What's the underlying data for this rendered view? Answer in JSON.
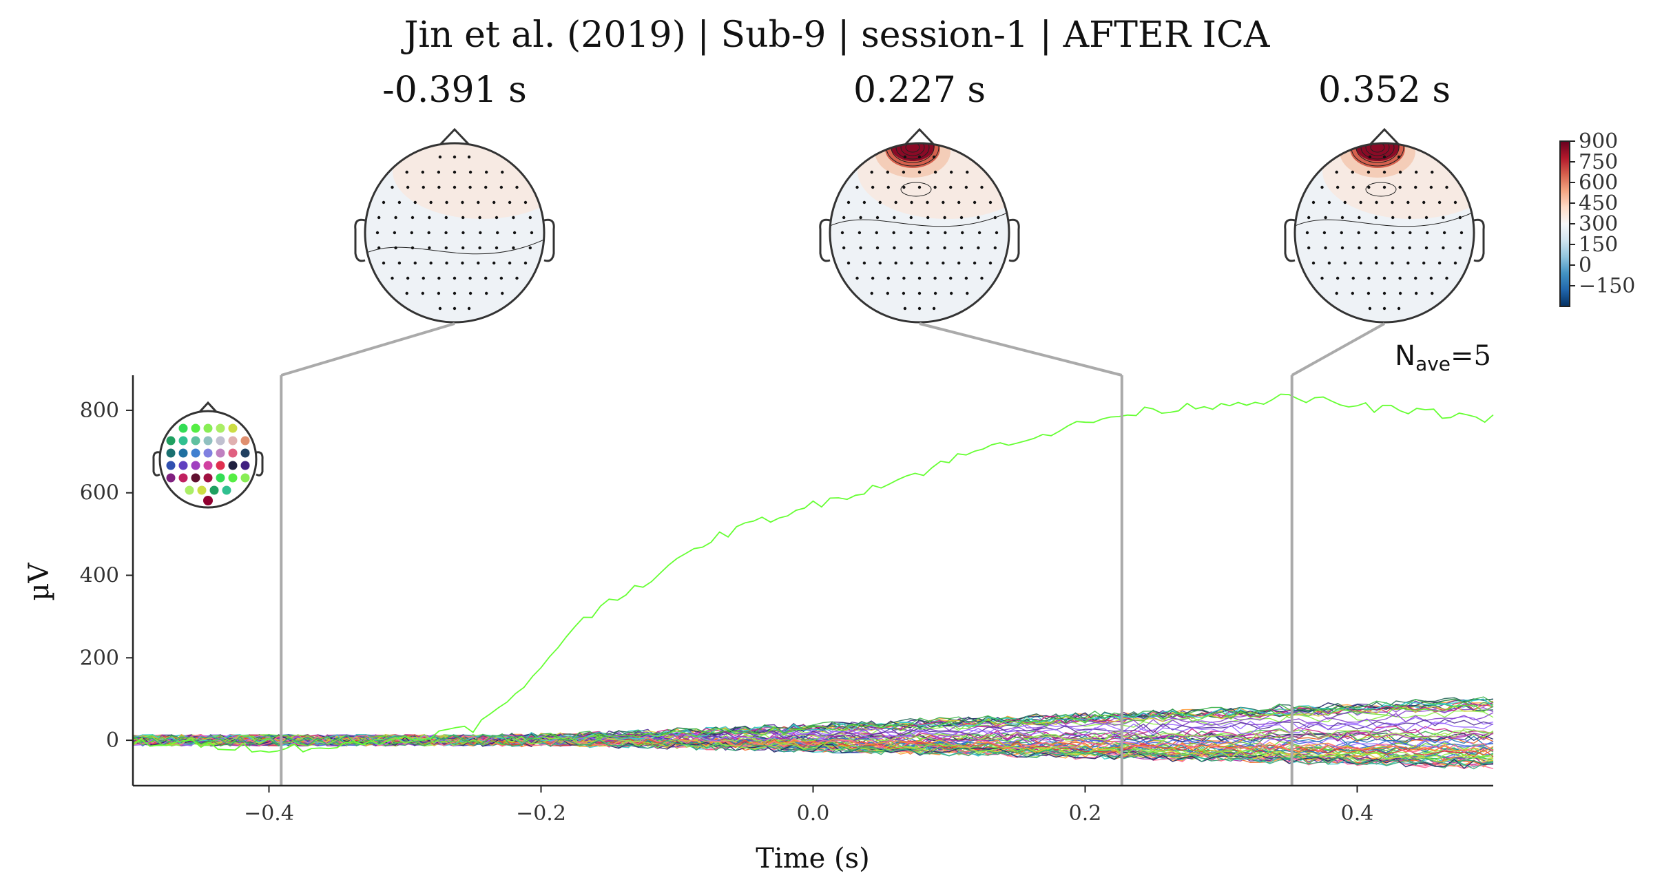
{
  "figure": {
    "title": "Jin et al. (2019) | Sub-9 | session-1 | AFTER ICA",
    "nave_text": "N",
    "nave_sub": "ave",
    "nave_value": "=5"
  },
  "topomaps": [
    {
      "time_label": "-0.391 s",
      "time": -0.391
    },
    {
      "time_label": "0.227 s",
      "time": 0.227
    },
    {
      "time_label": "0.352 s",
      "time": 0.352
    }
  ],
  "colorbar": {
    "ticks": [
      "900",
      "750",
      "600",
      "450",
      "300",
      "150",
      "0",
      "−150"
    ],
    "tick_values": [
      900,
      750,
      600,
      450,
      300,
      150,
      0,
      -150
    ],
    "vmin": -300,
    "vmax": 900,
    "colors": [
      "#053061",
      "#2166ac",
      "#4393c3",
      "#92c5de",
      "#d1e5f0",
      "#f7f7f7",
      "#fddbc7",
      "#f4a582",
      "#d6604d",
      "#b2182b",
      "#67001f"
    ]
  },
  "chart_data": {
    "type": "line",
    "xlabel": "Time (s)",
    "ylabel": "µV",
    "xlim": [
      -0.5,
      0.5
    ],
    "ylim": [
      -110,
      885
    ],
    "xticks": [
      -0.4,
      -0.2,
      0.0,
      0.2,
      0.4
    ],
    "xtick_labels": [
      "−0.4",
      "−0.2",
      "0.0",
      "0.2",
      "0.4"
    ],
    "yticks": [
      0,
      200,
      400,
      600,
      800
    ],
    "ytick_labels": [
      "0",
      "200",
      "400",
      "600",
      "800"
    ],
    "markers": [
      -0.391,
      0.227,
      0.352
    ],
    "dominant_series": {
      "color": "#66ff33",
      "x": [
        -0.5,
        -0.45,
        -0.4,
        -0.35,
        -0.3,
        -0.25,
        -0.22,
        -0.2,
        -0.18,
        -0.15,
        -0.12,
        -0.1,
        -0.08,
        -0.05,
        -0.02,
        0.0,
        0.03,
        0.05,
        0.08,
        0.1,
        0.12,
        0.15,
        0.18,
        0.2,
        0.23,
        0.25,
        0.28,
        0.3,
        0.33,
        0.35,
        0.38,
        0.4,
        0.43,
        0.45,
        0.48,
        0.5
      ],
      "y": [
        -5,
        -10,
        -20,
        -15,
        5,
        30,
        100,
        180,
        260,
        340,
        390,
        430,
        480,
        520,
        550,
        570,
        600,
        620,
        650,
        680,
        700,
        730,
        750,
        770,
        790,
        800,
        810,
        815,
        825,
        830,
        820,
        810,
        800,
        795,
        785,
        780
      ]
    },
    "channel_series_count": 64,
    "channel_range_at_end": [
      -60,
      100
    ],
    "grid": false,
    "legend": "sensor-layout-inset-top-left"
  }
}
